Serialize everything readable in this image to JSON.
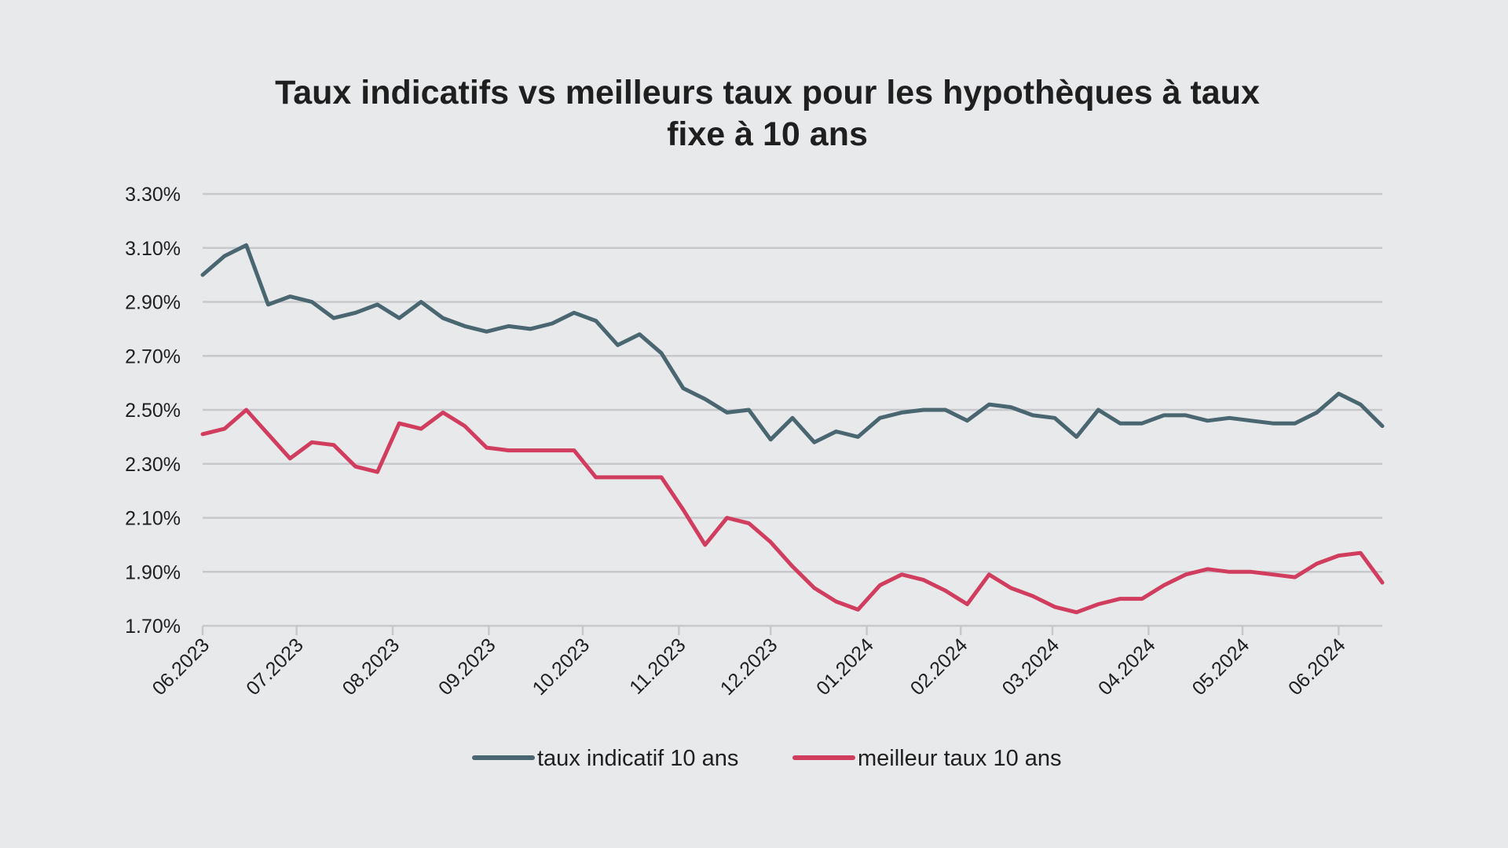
{
  "chart_data": {
    "type": "line",
    "title": [
      "Taux indicatifs vs meilleurs taux pour les hypothèques à taux",
      "fixe à 10 ans"
    ],
    "xlabel": "",
    "ylabel": "",
    "ylim": [
      1.7,
      3.3
    ],
    "y_ticks": [
      1.7,
      1.9,
      2.1,
      2.3,
      2.5,
      2.7,
      2.9,
      3.1,
      3.3
    ],
    "y_tick_labels": [
      "1.70%",
      "1.90%",
      "2.10%",
      "2.30%",
      "2.50%",
      "2.70%",
      "2.90%",
      "3.10%",
      "3.30%"
    ],
    "x_range": [
      0,
      54
    ],
    "x_ticks": [
      0,
      4.3,
      8.7,
      13.1,
      17.4,
      21.8,
      26.0,
      30.4,
      34.7,
      38.9,
      43.3,
      47.6,
      52.0
    ],
    "x_tick_labels": [
      "06.2023",
      "07.2023",
      "08.2023",
      "09.2023",
      "10.2023",
      "11.2023",
      "12.2023",
      "01.2024",
      "02.2024",
      "03.2024",
      "04.2024",
      "05.2024",
      "06.2024"
    ],
    "grid": true,
    "legend_position": "bottom",
    "series": [
      {
        "name": "taux indicatif 10 ans",
        "color": "#4a6670",
        "x": [
          0,
          1,
          2,
          3,
          4,
          5,
          6,
          7,
          8,
          9,
          10,
          11,
          12,
          13,
          14,
          15,
          16,
          17,
          18,
          19,
          20,
          21,
          22,
          23,
          24,
          25,
          26,
          27,
          28,
          29,
          30,
          31,
          32,
          33,
          34,
          35,
          36,
          37,
          38,
          39,
          40,
          41,
          42,
          43,
          44,
          45,
          46,
          47,
          48,
          49,
          50,
          51,
          52,
          53,
          54
        ],
        "values": [
          3.0,
          3.07,
          3.11,
          2.89,
          2.92,
          2.9,
          2.84,
          2.86,
          2.89,
          2.84,
          2.9,
          2.84,
          2.81,
          2.79,
          2.81,
          2.8,
          2.82,
          2.86,
          2.83,
          2.74,
          2.78,
          2.71,
          2.58,
          2.54,
          2.49,
          2.5,
          2.39,
          2.47,
          2.38,
          2.42,
          2.4,
          2.47,
          2.49,
          2.5,
          2.5,
          2.46,
          2.52,
          2.51,
          2.48,
          2.47,
          2.4,
          2.5,
          2.45,
          2.45,
          2.48,
          2.48,
          2.46,
          2.47,
          2.46,
          2.45,
          2.45,
          2.49,
          2.56,
          2.52,
          2.44
        ]
      },
      {
        "name": "meilleur taux 10 ans",
        "color": "#d03d5e",
        "x": [
          0,
          1,
          2,
          3,
          4,
          5,
          6,
          7,
          8,
          9,
          10,
          11,
          12,
          13,
          14,
          15,
          16,
          17,
          18,
          19,
          20,
          21,
          22,
          23,
          24,
          25,
          26,
          27,
          28,
          29,
          30,
          31,
          32,
          33,
          34,
          35,
          36,
          37,
          38,
          39,
          40,
          41,
          42,
          43,
          44,
          45,
          46,
          47,
          48,
          49,
          50,
          51,
          52,
          53,
          54
        ],
        "values": [
          2.41,
          2.43,
          2.5,
          2.41,
          2.32,
          2.38,
          2.37,
          2.29,
          2.27,
          2.45,
          2.43,
          2.49,
          2.44,
          2.36,
          2.35,
          2.35,
          2.35,
          2.35,
          2.25,
          2.25,
          2.25,
          2.25,
          2.13,
          2.0,
          2.1,
          2.08,
          2.01,
          1.92,
          1.84,
          1.79,
          1.76,
          1.85,
          1.89,
          1.87,
          1.83,
          1.78,
          1.89,
          1.84,
          1.81,
          1.77,
          1.75,
          1.78,
          1.8,
          1.8,
          1.85,
          1.89,
          1.91,
          1.9,
          1.9,
          1.89,
          1.88,
          1.93,
          1.96,
          1.97,
          1.86
        ]
      }
    ]
  }
}
